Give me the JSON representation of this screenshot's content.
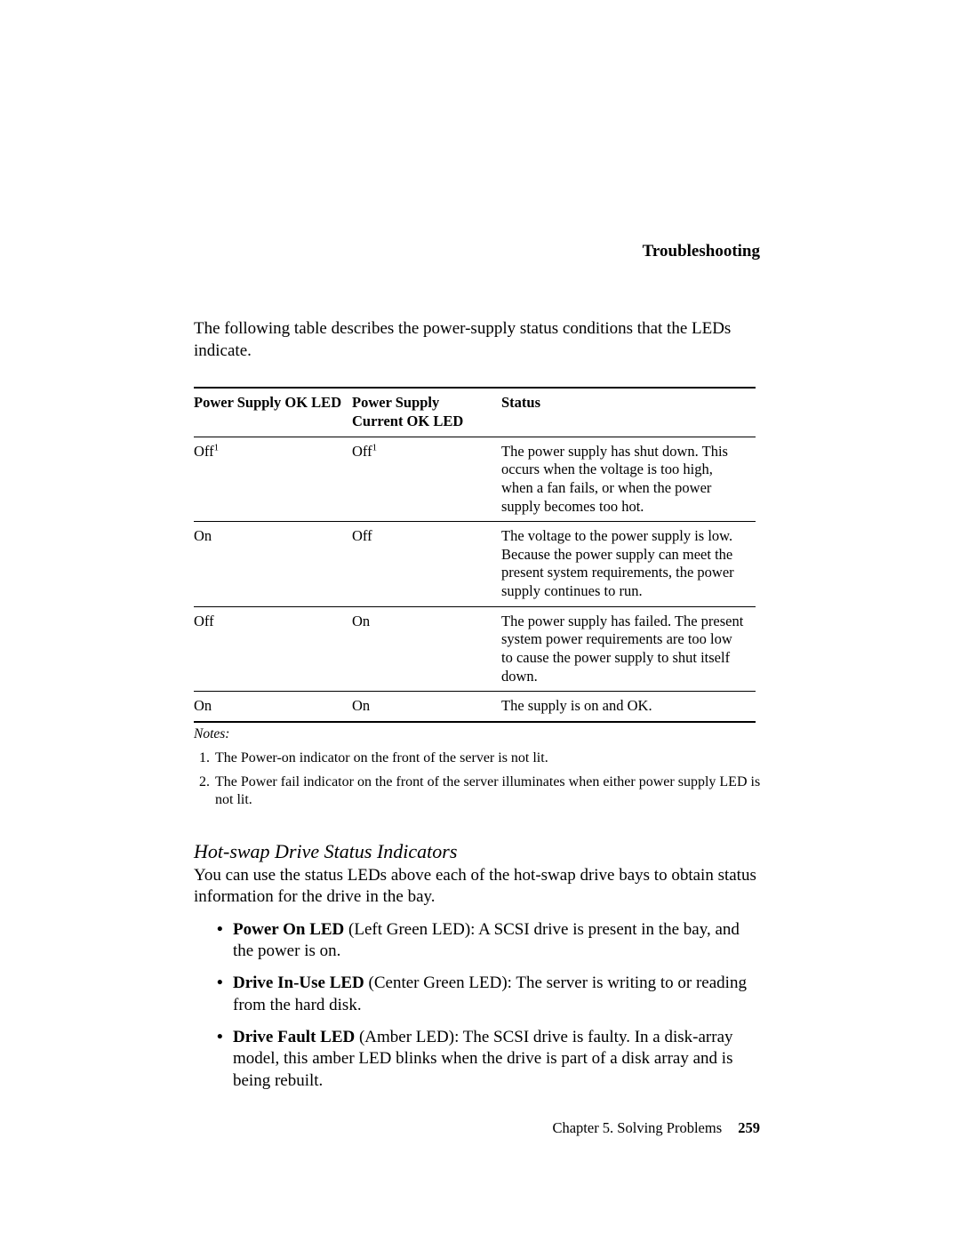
{
  "header": {
    "running_title": "Troubleshooting"
  },
  "intro": "The following table describes the power-supply status conditions that the LEDs indicate.",
  "table": {
    "columns": [
      "Power Supply OK LED",
      "Power Supply Current OK LED",
      "Status"
    ],
    "rows": [
      {
        "c1": "Off",
        "c1_sup": "1",
        "c2": "Off",
        "c2_sup": "1",
        "c3": "The power supply has shut down.  This occurs when the voltage is too high, when a fan fails, or when the power supply becomes too hot."
      },
      {
        "c1": "On",
        "c1_sup": "",
        "c2": "Off",
        "c2_sup": "",
        "c3": "The voltage to the power supply is low.  Because the power supply can meet the present system requirements, the power supply continues to run."
      },
      {
        "c1": "Off",
        "c1_sup": "",
        "c2": "On",
        "c2_sup": "",
        "c3": "The power supply has failed.  The present system power requirements are too low to cause the power supply to shut itself down."
      },
      {
        "c1": "On",
        "c1_sup": "",
        "c2": "On",
        "c2_sup": "",
        "c3": "The supply is on and OK."
      }
    ]
  },
  "notes_label": "Notes:",
  "notes": [
    "The Power-on indicator on the front of the server is not lit.",
    "The Power fail indicator on the front of the server illuminates when either power supply LED is not lit."
  ],
  "section": {
    "heading": "Hot-swap Drive Status Indicators",
    "body": "You can use the status LEDs above each of the hot-swap drive bays to obtain status information for the drive in the bay.",
    "items": [
      {
        "b": "Power On LED",
        "t": " (Left Green LED): A SCSI drive is present in the bay, and the power is on."
      },
      {
        "b": "Drive In-Use LED",
        "t": " (Center Green LED): The server is writing to or reading from the hard disk."
      },
      {
        "b": "Drive Fault LED",
        "t": " (Amber LED): The SCSI drive is faulty.  In a disk-array model, this amber LED blinks when the drive is part of a disk array and is being rebuilt."
      }
    ]
  },
  "footer": {
    "chapter": "Chapter 5.  Solving Problems",
    "page": "259"
  }
}
